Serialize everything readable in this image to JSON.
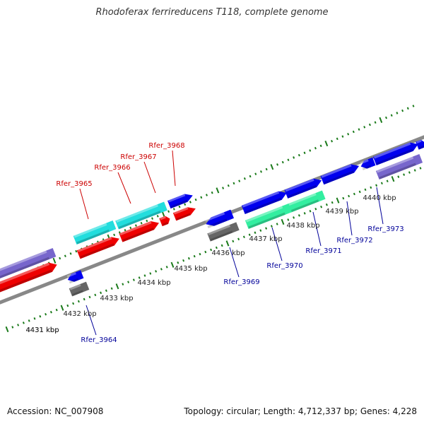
{
  "title": "Rhodoferax ferrireducens T118, complete genome",
  "footer": {
    "accession": "Accession: NC_007908",
    "summary": "Topology: circular; Length: 4,712,337 bp; Genes: 4,228"
  },
  "colors": {
    "backbone": "#888888",
    "tick": "#1a7a1a",
    "cds_forward": "#0000ee",
    "cds_reverse": "#ee0000",
    "gene_cyan": "#22dddd",
    "gene_green": "#33eea0",
    "gene_gray": "#666666",
    "gene_purple": "#7766cc",
    "label_top": "#cc0000",
    "label_bottom": "#000099"
  },
  "scale_labels": [
    "4431 kbp",
    "4432 kbp",
    "4433 kbp",
    "4434 kbp",
    "4435 kbp",
    "4436 kbp",
    "4437 kbp",
    "4438 kbp",
    "4439 kbp",
    "4440 kbp"
  ],
  "gene_labels_top": [
    "Rfer_3965",
    "Rfer_3966",
    "Rfer_3967",
    "Rfer_3968"
  ],
  "gene_labels_bottom": [
    "Rfer_3964",
    "Rfer_3969",
    "Rfer_3970",
    "Rfer_3971",
    "Rfer_3972",
    "Rfer_3973"
  ]
}
